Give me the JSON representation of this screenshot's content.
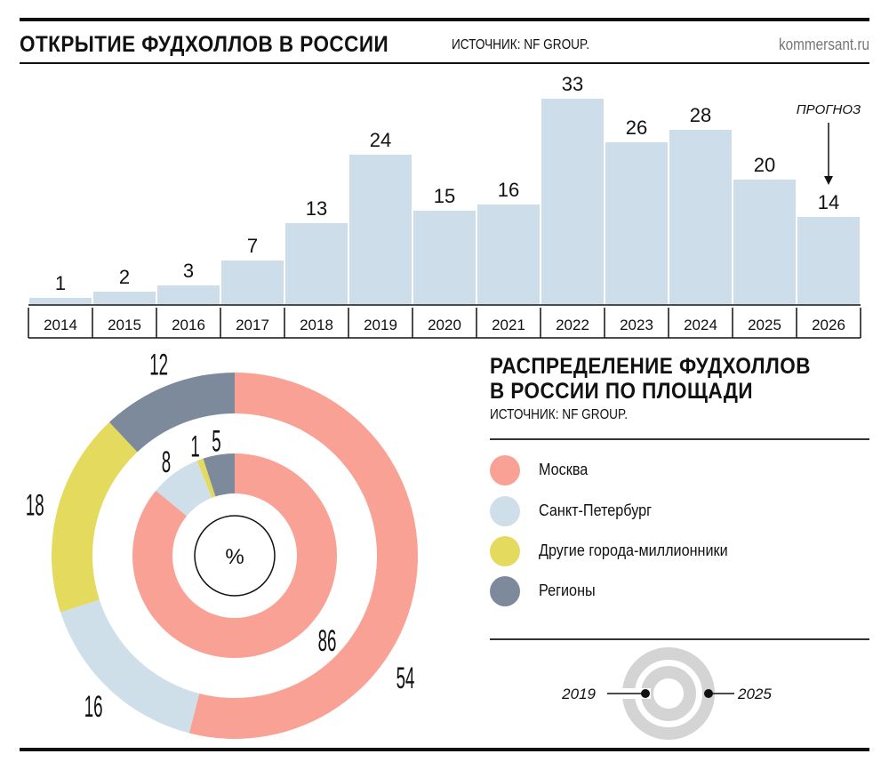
{
  "header": {
    "title": "ОТКРЫТИЕ ФУДХОЛЛОВ В РОССИИ",
    "source": "ИСТОЧНИК: NF GROUP.",
    "brand": "kommersant.ru"
  },
  "section2": {
    "title_line1": "РАСПРЕДЕЛЕНИЕ ФУДХОЛЛОВ",
    "title_line2": "В РОССИИ ПО ПЛОЩАДИ",
    "source": "ИСТОЧНИК: NF GROUP."
  },
  "colors": {
    "bar": "#cddde9",
    "moscow": "#f9a194",
    "spb": "#cfdfea",
    "other": "#e4da5e",
    "regions": "#7c8a9c",
    "key_ring": "#d4d4d4"
  },
  "chart_data": [
    {
      "type": "bar",
      "title": "ОТКРЫТИЕ ФУДХОЛЛОВ В РОССИИ",
      "categories": [
        "2014",
        "2015",
        "2016",
        "2017",
        "2018",
        "2019",
        "2020",
        "2021",
        "2022",
        "2023",
        "2024",
        "2025",
        "2026"
      ],
      "values": [
        1,
        2,
        3,
        7,
        13,
        24,
        15,
        16,
        33,
        26,
        28,
        20,
        14
      ],
      "annotation": {
        "text": "ПРОГНОЗ",
        "category": "2026"
      },
      "ylim": [
        0,
        33
      ],
      "grid": false
    },
    {
      "type": "pie",
      "title": "РАСПРЕДЕЛЕНИЕ ФУДХОЛЛОВ В РОССИИ ПО ПЛОЩАДИ",
      "unit": "%",
      "legend": [
        "Москва",
        "Санкт-Петербург",
        "Другие города-миллионники",
        "Регионы"
      ],
      "legend_placement": "right",
      "rings": [
        {
          "name": "2019",
          "position": "inner",
          "values": [
            86,
            8,
            1,
            5
          ]
        },
        {
          "name": "2025",
          "position": "outer",
          "values": [
            54,
            16,
            18,
            12
          ]
        }
      ]
    }
  ]
}
